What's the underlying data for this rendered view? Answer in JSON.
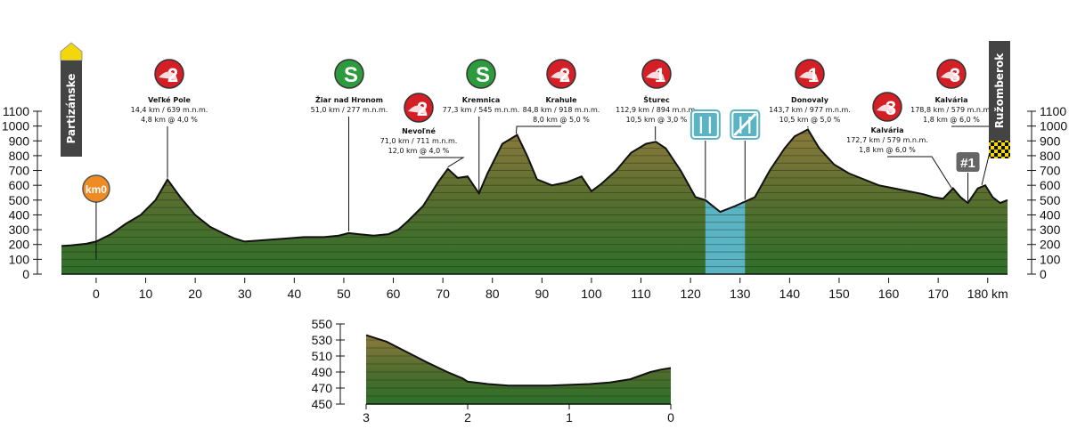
{
  "chart_data": [
    {
      "type": "area",
      "xunit": "km",
      "xlim": [
        -7,
        184
      ],
      "ylim": [
        0,
        1100
      ],
      "xticks": [
        0,
        10,
        20,
        30,
        40,
        50,
        60,
        70,
        80,
        90,
        100,
        110,
        120,
        130,
        140,
        150,
        160,
        170,
        180
      ],
      "xtick_labels": [
        "0",
        "10",
        "20",
        "30",
        "40",
        "50",
        "60",
        "70",
        "80",
        "90",
        "100",
        "110",
        "120",
        "130",
        "140",
        "150",
        "160",
        "170",
        "180 km"
      ],
      "yticks": [
        0,
        100,
        200,
        300,
        400,
        500,
        600,
        700,
        800,
        900,
        1000,
        1100
      ],
      "profile": {
        "x": [
          -7,
          -5,
          -2,
          0,
          3,
          6,
          9,
          12,
          14.4,
          17,
          20,
          23,
          26,
          28,
          30,
          34,
          38,
          42,
          46,
          49,
          51,
          53,
          56,
          59,
          61,
          63,
          66,
          69,
          71,
          73,
          75,
          77.3,
          79,
          82,
          85,
          87,
          89,
          92,
          95,
          98,
          100,
          102,
          105,
          108,
          111,
          113,
          115,
          118,
          121,
          123,
          126,
          129,
          131,
          133,
          136,
          139,
          141,
          143.7,
          146,
          149,
          152,
          155,
          158,
          161,
          164,
          167,
          169,
          171,
          173,
          174.5,
          176,
          178,
          179.5,
          181,
          182.5,
          184
        ],
        "y": [
          190,
          195,
          205,
          220,
          270,
          340,
          400,
          500,
          639,
          520,
          400,
          320,
          270,
          240,
          220,
          230,
          240,
          250,
          250,
          260,
          277,
          270,
          260,
          270,
          300,
          360,
          460,
          620,
          711,
          650,
          660,
          545,
          680,
          880,
          940,
          800,
          640,
          600,
          620,
          660,
          560,
          610,
          700,
          820,
          880,
          894,
          850,
          700,
          520,
          500,
          420,
          460,
          490,
          520,
          700,
          850,
          930,
          977,
          850,
          740,
          680,
          640,
          600,
          580,
          560,
          540,
          520,
          510,
          580,
          520,
          480,
          579,
          600,
          520,
          480,
          500
        ]
      },
      "climbs": [
        {
          "cat": "2",
          "name": "Veľké Pole",
          "detail1": "14,4 km / 639 m.n.m.",
          "detail2": "4,8 km @ 4,0 %",
          "km": 14.4,
          "elev": 639
        },
        {
          "cat": "2",
          "name": "Nevoľné",
          "detail1": "71,0 km / 711 m.n.m.",
          "detail2": "12,0 km @ 4,0 %",
          "km": 71.0,
          "elev": 711
        },
        {
          "cat": "2",
          "name": "Krahule",
          "detail1": "84,8 km / 918 m.n.m.",
          "detail2": "8,0 km @ 5,0 %",
          "km": 84.8,
          "elev": 918
        },
        {
          "cat": "1",
          "name": "Šturec",
          "detail1": "112,9 km / 894 m.n.m.",
          "detail2": "10,5 km @ 3,0 %",
          "km": 112.9,
          "elev": 894
        },
        {
          "cat": "1",
          "name": "Donovaly",
          "detail1": "143,7 km / 977 m.n.m.",
          "detail2": "10,5 km @ 5,0 %",
          "km": 143.7,
          "elev": 977
        },
        {
          "cat": "3",
          "name": "Kalvária",
          "detail1": "172,7 km / 579 m.n.m.",
          "detail2": "1,8 km @ 6,0 %",
          "km": 172.7,
          "elev": 579
        },
        {
          "cat": "3",
          "name": "Kalvária",
          "detail1": "178,8 km / 579 m.n.m.",
          "detail2": "1,8 km @ 6,0 %",
          "km": 178.8,
          "elev": 579
        }
      ],
      "sprints": [
        {
          "label": "S",
          "name": "Žiar nad Hronom",
          "detail1": "51,0 km / 277 m.n.m.",
          "km": 51.0,
          "elev": 277
        },
        {
          "label": "S",
          "name": "Kremnica",
          "detail1": "77,3 km / 545 m.n.m.",
          "km": 77.3,
          "elev": 545
        }
      ],
      "feed_zone": {
        "from": 123,
        "to": 131
      },
      "km0": {
        "label": "km0",
        "km": 0
      },
      "lap_marker": {
        "label": "#1",
        "km": 176
      },
      "start": "Partizánske",
      "finish": "Ružomberok"
    },
    {
      "type": "area",
      "xlim": [
        3,
        0
      ],
      "ylim": [
        450,
        550
      ],
      "xticks": [
        3,
        2,
        1,
        0
      ],
      "yticks": [
        450,
        470,
        490,
        510,
        530,
        550
      ],
      "profile": {
        "x": [
          3,
          2.8,
          2.6,
          2.4,
          2.2,
          2.05,
          2.0,
          1.8,
          1.6,
          1.4,
          1.2,
          1.0,
          0.8,
          0.6,
          0.4,
          0.2,
          0.1,
          0
        ],
        "y": [
          536,
          528,
          515,
          502,
          490,
          482,
          478,
          475,
          473,
          473,
          473,
          474,
          475,
          477,
          481,
          490,
          493,
          495
        ]
      }
    }
  ],
  "colors": {
    "terrain_top": "#8a7a3c",
    "terrain_mid": "#3d6b2a",
    "terrain_bottom": "#2d6e2a",
    "cat_badge": "#d41f26",
    "sprint_badge": "#2e9a3e",
    "feed": "#5ab4c4",
    "start_flag": "#f2d70d",
    "town_bg": "#444444",
    "km0": "#f08a22"
  },
  "icons": [
    "feed-zone-icon",
    "no-feed-zone-icon",
    "start-flag-icon",
    "finish-checkered-icon"
  ]
}
